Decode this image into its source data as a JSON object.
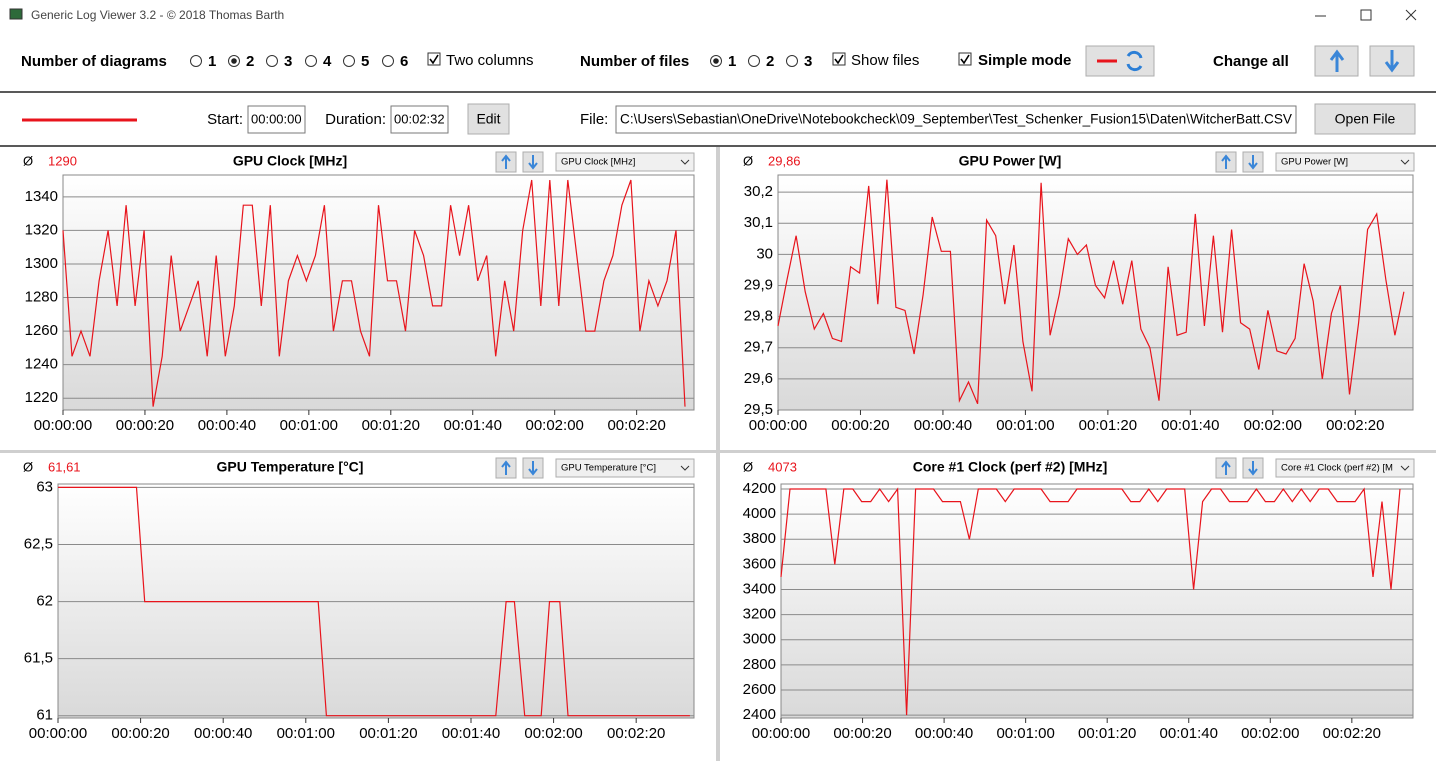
{
  "title_bar": {
    "title": "Generic Log Viewer 3.2 - © 2018 Thomas Barth"
  },
  "toolbar": {
    "diagrams_label": "Number of diagrams",
    "diagram_options": [
      "1",
      "2",
      "3",
      "4",
      "5",
      "6"
    ],
    "diagram_selected": 1,
    "two_columns": "Two columns",
    "files_label": "Number of files",
    "file_options": [
      "1",
      "2",
      "3"
    ],
    "file_selected": 0,
    "show_files": "Show files",
    "simple_mode": "Simple mode",
    "change_all": "Change all"
  },
  "file_bar": {
    "start_label": "Start:",
    "start": "00:00:00",
    "duration_label": "Duration:",
    "duration": "00:02:32",
    "edit": "Edit",
    "file_label": "File:",
    "path": "C:\\Users\\Sebastian\\OneDrive\\Notebookcheck\\09_September\\Test_Schenker_Fusion15\\Daten\\WitcherBatt.CSV",
    "open": "Open File"
  },
  "chart_data": [
    {
      "type": "line",
      "title": "GPU Clock [MHz]",
      "selector": "GPU Clock [MHz]",
      "average_symbol": "Ø",
      "average": "1290",
      "color": "#e8141c",
      "grid": true,
      "xlim": [
        0,
        154
      ],
      "xticks": [
        {
          "value": 0,
          "label": "00:00:00"
        },
        {
          "value": 20,
          "label": "00:00:20"
        },
        {
          "value": 40,
          "label": "00:00:40"
        },
        {
          "value": 60,
          "label": "00:01:00"
        },
        {
          "value": 80,
          "label": "00:01:20"
        },
        {
          "value": 100,
          "label": "00:01:40"
        },
        {
          "value": 120,
          "label": "00:02:00"
        },
        {
          "value": 140,
          "label": "00:02:20"
        }
      ],
      "ylim": [
        1213,
        1353
      ],
      "yticks": [
        1220,
        1240,
        1260,
        1280,
        1300,
        1320,
        1340
      ],
      "x": [
        0,
        2.2,
        4.4,
        6.6,
        8.8,
        11,
        13.2,
        15.4,
        17.6,
        19.8,
        22,
        24.2,
        26.4,
        28.6,
        30.8,
        33,
        35.2,
        37.4,
        39.6,
        41.8,
        44,
        46.2,
        48.4,
        50.6,
        52.8,
        55,
        57.2,
        59.4,
        61.6,
        63.8,
        66,
        68.2,
        70.4,
        72.6,
        74.8,
        77,
        79.2,
        81.4,
        83.6,
        85.8,
        88,
        90.2,
        92.4,
        94.6,
        96.8,
        99,
        101.2,
        103.4,
        105.6,
        107.8,
        110,
        112.2,
        114.4,
        116.6,
        118.8,
        121,
        123.2,
        125.4,
        127.6,
        129.8,
        132,
        134.2,
        136.4,
        138.6,
        140.8,
        143,
        145.2,
        147.4,
        149.6,
        151.8
      ],
      "values": [
        1320,
        1245,
        1260,
        1245,
        1290,
        1320,
        1275,
        1335,
        1275,
        1320,
        1215,
        1245,
        1305,
        1260,
        1275,
        1290,
        1245,
        1305,
        1245,
        1275,
        1335,
        1335,
        1275,
        1335,
        1245,
        1290,
        1305,
        1290,
        1305,
        1335,
        1260,
        1290,
        1290,
        1260,
        1245,
        1335,
        1290,
        1290,
        1260,
        1320,
        1305,
        1275,
        1275,
        1335,
        1305,
        1335,
        1290,
        1305,
        1245,
        1290,
        1260,
        1320,
        1350,
        1275,
        1350,
        1275,
        1350,
        1305,
        1260,
        1260,
        1290,
        1305,
        1335,
        1350,
        1260,
        1290,
        1275,
        1290,
        1320,
        1215
      ]
    },
    {
      "type": "line",
      "title": "GPU Power [W]",
      "selector": "GPU Power [W]",
      "average_symbol": "Ø",
      "average": "29,86",
      "color": "#e8141c",
      "grid": true,
      "xlim": [
        0,
        154
      ],
      "xticks": [
        {
          "value": 0,
          "label": "00:00:00"
        },
        {
          "value": 20,
          "label": "00:00:20"
        },
        {
          "value": 40,
          "label": "00:00:40"
        },
        {
          "value": 60,
          "label": "00:01:00"
        },
        {
          "value": 80,
          "label": "00:01:20"
        },
        {
          "value": 100,
          "label": "00:01:40"
        },
        {
          "value": 120,
          "label": "00:02:00"
        },
        {
          "value": 140,
          "label": "00:02:20"
        }
      ],
      "ylim": [
        29.5,
        30.255
      ],
      "yticks": [
        {
          "value": 29.5,
          "label": "29,5"
        },
        {
          "value": 29.6,
          "label": "29,6"
        },
        {
          "value": 29.7,
          "label": "29,7"
        },
        {
          "value": 29.8,
          "label": "29,8"
        },
        {
          "value": 29.9,
          "label": "29,9"
        },
        30,
        {
          "value": 30.1,
          "label": "30,1"
        },
        {
          "value": 30.2,
          "label": "30,2"
        }
      ],
      "x": [
        0,
        2.2,
        4.4,
        6.6,
        8.8,
        11,
        13.2,
        15.4,
        17.6,
        19.8,
        22,
        24.2,
        26.4,
        28.6,
        30.8,
        33,
        35.2,
        37.4,
        39.6,
        41.8,
        44,
        46.2,
        48.4,
        50.6,
        52.8,
        55,
        57.2,
        59.4,
        61.6,
        63.8,
        66,
        68.2,
        70.4,
        72.6,
        74.8,
        77,
        79.2,
        81.4,
        83.6,
        85.8,
        88,
        90.2,
        92.4,
        94.6,
        96.8,
        99,
        101.2,
        103.4,
        105.6,
        107.8,
        110,
        112.2,
        114.4,
        116.6,
        118.8,
        121,
        123.2,
        125.4,
        127.6,
        129.8,
        132,
        134.2,
        136.4,
        138.6,
        140.8,
        143,
        145.2,
        147.4,
        149.6,
        151.8
      ],
      "values": [
        29.77,
        29.92,
        30.06,
        29.88,
        29.76,
        29.81,
        29.73,
        29.72,
        29.96,
        29.94,
        30.22,
        29.84,
        30.24,
        29.83,
        29.82,
        29.68,
        29.87,
        30.12,
        30.01,
        30.01,
        29.53,
        29.59,
        29.52,
        30.11,
        30.06,
        29.84,
        30.03,
        29.72,
        29.56,
        30.23,
        29.74,
        29.87,
        30.05,
        30.0,
        30.03,
        29.9,
        29.86,
        29.98,
        29.84,
        29.98,
        29.76,
        29.7,
        29.53,
        29.96,
        29.74,
        29.75,
        30.13,
        29.77,
        30.06,
        29.75,
        30.08,
        29.78,
        29.76,
        29.63,
        29.82,
        29.69,
        29.68,
        29.73,
        29.97,
        29.85,
        29.6,
        29.81,
        29.9,
        29.55,
        29.78,
        30.08,
        30.13,
        29.92,
        29.74,
        29.88
      ]
    },
    {
      "type": "line",
      "title": "GPU Temperature [°C]",
      "selector": "GPU Temperature [°C]",
      "average_symbol": "Ø",
      "average": "61,61",
      "color": "#e8141c",
      "grid": true,
      "xlim": [
        0,
        154
      ],
      "xticks": [
        {
          "value": 0,
          "label": "00:00:00"
        },
        {
          "value": 20,
          "label": "00:00:20"
        },
        {
          "value": 40,
          "label": "00:00:40"
        },
        {
          "value": 60,
          "label": "00:01:00"
        },
        {
          "value": 80,
          "label": "00:01:20"
        },
        {
          "value": 100,
          "label": "00:01:40"
        },
        {
          "value": 120,
          "label": "00:02:00"
        },
        {
          "value": 140,
          "label": "00:02:20"
        }
      ],
      "ylim": [
        60.98,
        63.03
      ],
      "yticks": [
        61,
        {
          "value": 61.5,
          "label": "61,5"
        },
        62,
        {
          "value": 62.5,
          "label": "62,5"
        },
        63
      ],
      "x": [
        0,
        19,
        21,
        63,
        65,
        106,
        108.5,
        110.5,
        113,
        117,
        119,
        121.5,
        123.5,
        153
      ],
      "values": [
        63,
        63,
        62,
        62,
        61,
        61,
        62,
        62,
        61,
        61,
        62,
        62,
        61,
        61
      ]
    },
    {
      "type": "line",
      "title": "Core #1 Clock (perf #2) [MHz]",
      "selector": "Core #1 Clock (perf #2) [M",
      "average_symbol": "Ø",
      "average": "4073",
      "color": "#e8141c",
      "grid": true,
      "xlim": [
        0,
        155
      ],
      "xticks": [
        {
          "value": 0,
          "label": "00:00:00"
        },
        {
          "value": 20,
          "label": "00:00:20"
        },
        {
          "value": 40,
          "label": "00:00:40"
        },
        {
          "value": 60,
          "label": "00:01:00"
        },
        {
          "value": 80,
          "label": "00:01:20"
        },
        {
          "value": 100,
          "label": "00:01:40"
        },
        {
          "value": 120,
          "label": "00:02:00"
        },
        {
          "value": 140,
          "label": "00:02:20"
        }
      ],
      "ylim": [
        2377,
        4240
      ],
      "yticks": [
        2400,
        2600,
        2800,
        3000,
        3200,
        3400,
        3600,
        3800,
        4000,
        4200
      ],
      "x": [
        0,
        2.2,
        4.4,
        6.6,
        8.8,
        11,
        13.2,
        15.4,
        17.6,
        19.8,
        22,
        24.2,
        26.4,
        28.6,
        30.8,
        33,
        35.2,
        37.4,
        39.6,
        41.8,
        44,
        46.2,
        48.4,
        50.6,
        52.8,
        55,
        57.2,
        59.4,
        61.6,
        63.8,
        66,
        68.2,
        70.4,
        72.6,
        74.8,
        77,
        79.2,
        81.4,
        83.6,
        85.8,
        88,
        90.2,
        92.4,
        94.6,
        96.8,
        99,
        101.2,
        103.4,
        105.6,
        107.8,
        110,
        112.2,
        114.4,
        116.6,
        118.8,
        121,
        123.2,
        125.4,
        127.6,
        129.8,
        132,
        134.2,
        136.4,
        138.6,
        140.8,
        143,
        145.2,
        147.4,
        149.6,
        151.8
      ],
      "values": [
        3500,
        4200,
        4200,
        4200,
        4200,
        4200,
        3600,
        4200,
        4200,
        4100,
        4100,
        4200,
        4100,
        4200,
        2400,
        4200,
        4200,
        4200,
        4100,
        4100,
        4100,
        3800,
        4200,
        4200,
        4200,
        4100,
        4200,
        4200,
        4200,
        4200,
        4100,
        4100,
        4100,
        4200,
        4200,
        4200,
        4200,
        4200,
        4200,
        4100,
        4100,
        4200,
        4100,
        4200,
        4200,
        4200,
        3400,
        4100,
        4200,
        4200,
        4100,
        4100,
        4100,
        4200,
        4100,
        4100,
        4200,
        4100,
        4200,
        4100,
        4200,
        4200,
        4100,
        4100,
        4100,
        4200,
        3500,
        4100,
        3400,
        4200
      ]
    }
  ]
}
